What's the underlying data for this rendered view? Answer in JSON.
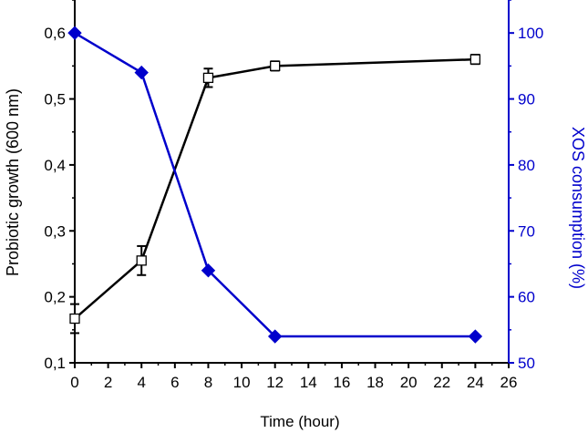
{
  "chart_data": {
    "type": "line",
    "xlabel": "Time (hour)",
    "ylabel_left": "Probiotic growth (600 nm)",
    "ylabel_right": "XOS consumption (%)",
    "xlim": [
      0,
      26
    ],
    "ylim_left": [
      0.1,
      0.65
    ],
    "ylim_right": [
      50,
      105
    ],
    "x_ticks": [
      0,
      2,
      4,
      6,
      8,
      10,
      12,
      14,
      16,
      18,
      20,
      22,
      24,
      26
    ],
    "x_tick_labels": [
      "0",
      "2",
      "4",
      "6",
      "8",
      "10",
      "12",
      "14",
      "16",
      "18",
      "20",
      "22",
      "24",
      "26"
    ],
    "y_left_ticks": [
      0.1,
      0.2,
      0.3,
      0.4,
      0.5,
      0.6
    ],
    "y_left_tick_labels": [
      "0,1",
      "0,2",
      "0,3",
      "0,4",
      "0,5",
      "0,6"
    ],
    "y_right_ticks": [
      50,
      60,
      70,
      80,
      90,
      100
    ],
    "y_right_tick_labels": [
      "50",
      "60",
      "70",
      "80",
      "90",
      "100"
    ],
    "grid": false,
    "colors": {
      "growth": "#000000",
      "xos": "#0000cc"
    },
    "series": [
      {
        "axis": "left",
        "marker": "open-square",
        "x": [
          0,
          4,
          8,
          12,
          24
        ],
        "y": [
          0.167,
          0.255,
          0.532,
          0.55,
          0.56
        ],
        "err": [
          0.022,
          0.022,
          0.014,
          0.007,
          0.007
        ]
      },
      {
        "axis": "right",
        "marker": "filled-diamond",
        "x": [
          0,
          4,
          8,
          12,
          24
        ],
        "y": [
          100,
          94,
          64,
          54,
          54
        ]
      }
    ]
  }
}
